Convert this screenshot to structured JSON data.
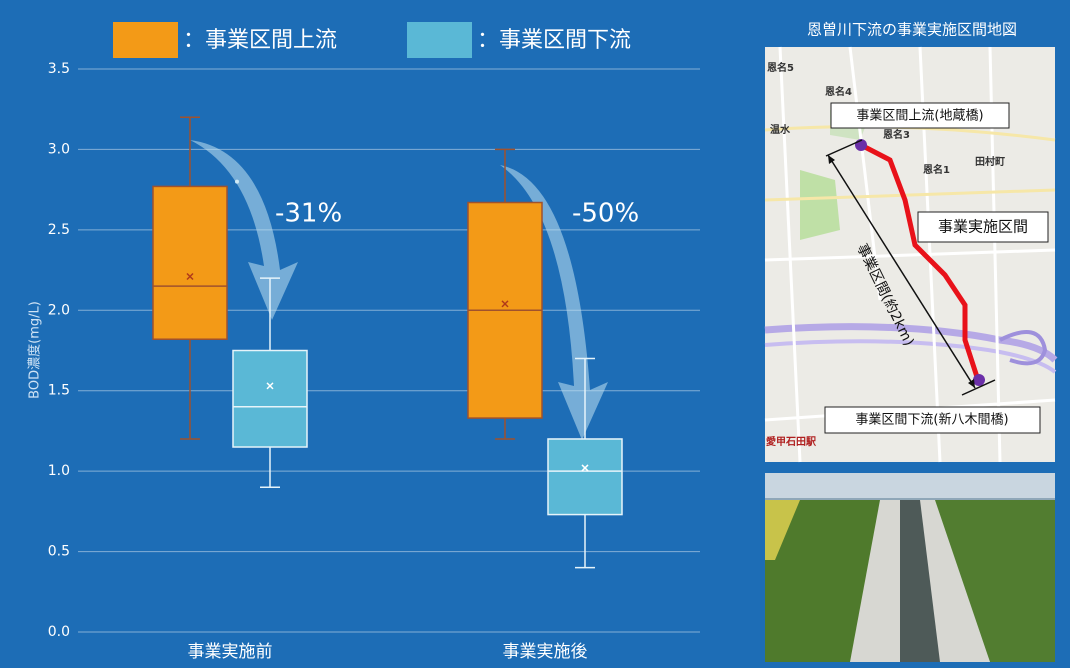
{
  "chart_data": {
    "type": "box",
    "categories": [
      "事業実施前",
      "事業実施後"
    ],
    "ylabel": "BOD濃度(mg/L)",
    "ylim": [
      0,
      3.5
    ],
    "yticks": [
      {
        "value": 0,
        "label": "0.0"
      },
      0.5,
      {
        "value": 1,
        "label": "1.0"
      },
      1.5,
      {
        "value": 2,
        "label": "2.0"
      },
      2.5,
      {
        "value": 3,
        "label": "3.0"
      },
      3.5
    ],
    "grid": true,
    "series": [
      {
        "name": "：事業区間上流",
        "color": "#f39a17",
        "whisker_low": [
          1.2,
          1.2
        ],
        "q1": [
          1.82,
          1.33
        ],
        "median": [
          2.15,
          2.0
        ],
        "mean": [
          2.21,
          2.04
        ],
        "q3": [
          2.77,
          2.67
        ],
        "whisker_high": [
          3.2,
          3.0
        ],
        "outliers": [
          [],
          []
        ]
      },
      {
        "name": "：事業区間下流",
        "color": "#5ab8d6",
        "whisker_low": [
          0.9,
          0.4
        ],
        "q1": [
          1.15,
          0.73
        ],
        "median": [
          1.4,
          1.0
        ],
        "mean": [
          1.53,
          1.02
        ],
        "q3": [
          1.75,
          1.2
        ],
        "whisker_high": [
          2.2,
          1.7
        ],
        "outliers": [
          [
            2.8
          ],
          []
        ]
      }
    ],
    "annotations": [
      {
        "text": "-31%"
      },
      {
        "text": "-50%"
      }
    ]
  },
  "map": {
    "title": "恩曽川下流の事業実施区間地図",
    "labels": [
      "事業区間上流(地蔵橋)",
      "事業実施区間",
      "事業区間(約2km)",
      "事業区間下流(新八木間橋)"
    ],
    "places": [
      "恩名5",
      "恩名4",
      "恩名3",
      "恩名1",
      "温水",
      "田村町",
      "愛甲石田駅"
    ]
  }
}
